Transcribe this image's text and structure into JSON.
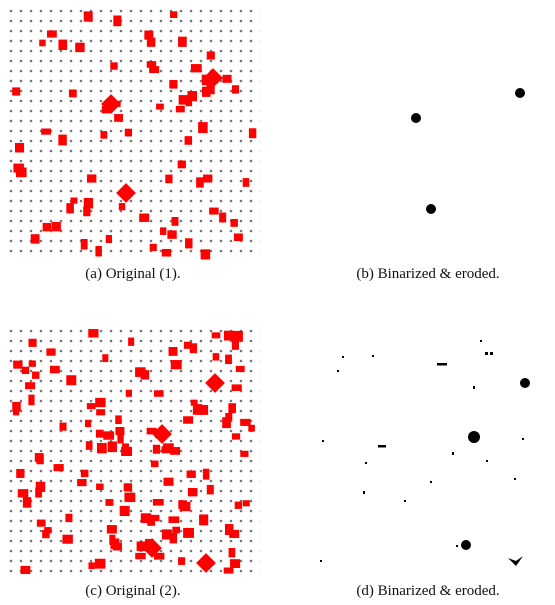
{
  "figure": {
    "subfigures": [
      {
        "caption": "(a) Original (1)."
      },
      {
        "caption": "(b) Binarized & eroded."
      },
      {
        "caption": "(c) Original (2)."
      },
      {
        "caption": "(d) Binarized & eroded."
      }
    ]
  }
}
